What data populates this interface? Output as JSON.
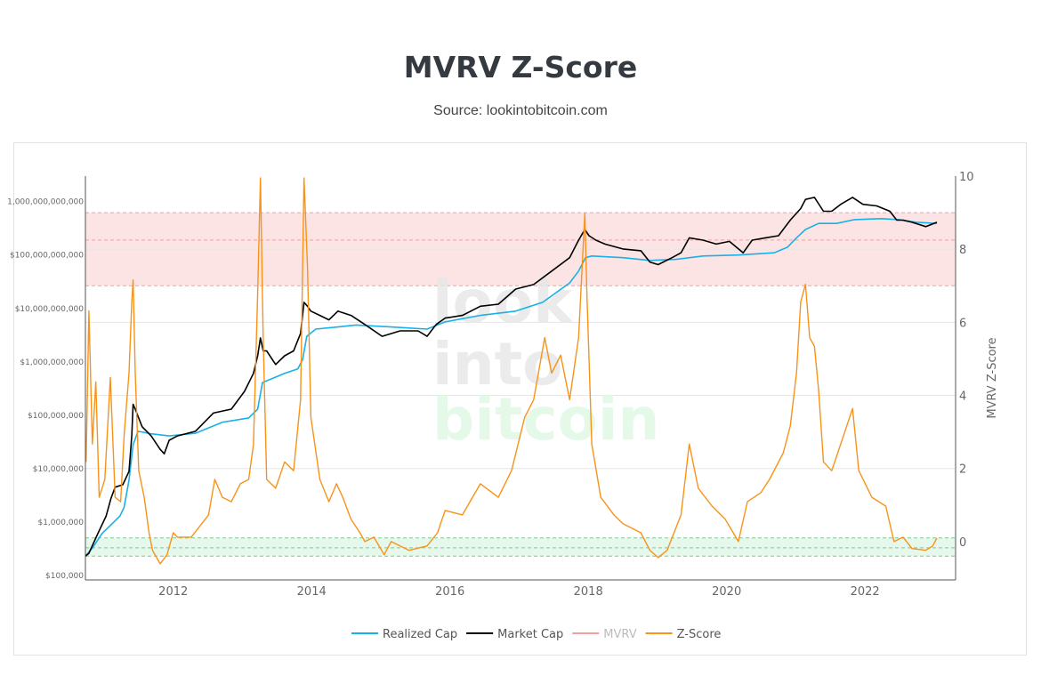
{
  "header": {
    "title": "MVRV Z-Score",
    "subtitle": "Source: lookintobitcoin.com"
  },
  "watermark": [
    "look",
    "into",
    "bitcoin"
  ],
  "chart_data": {
    "type": "line",
    "title": "MVRV Z-Score",
    "xlabel": "",
    "ylabel_left": "",
    "ylabel_right": "MVRV Z-Score",
    "x_range": [
      2010.73,
      2023.31
    ],
    "x_ticks": [
      "2012",
      "2014",
      "2016",
      "2018",
      "2020",
      "2022"
    ],
    "left_axis": {
      "scale": "log",
      "range": [
        100000,
        3000000000000
      ],
      "ticks": [
        "$100,000",
        "$1,000,000",
        "$10,000,000",
        "$100,000,000",
        "$1,000,000,000",
        "$10,000,000,000",
        "$100,000,000,000",
        "1,000,000,000,000"
      ]
    },
    "right_axis": {
      "scale": "linear",
      "range": [
        -1.05,
        10
      ],
      "ticks": [
        "0",
        "2",
        "4",
        "6",
        "8",
        "10"
      ]
    },
    "grid": true,
    "legend_placement": "bottom",
    "bands": [
      {
        "name": "overvalued",
        "axis": "right",
        "range": [
          7.0,
          9.0
        ],
        "inner": 8.25,
        "color": "#fde4e4",
        "line": "#f0a0a0"
      },
      {
        "name": "undervalued",
        "axis": "right",
        "range": [
          -0.4,
          0.1
        ],
        "inner": -0.17,
        "color": "#e6f7ec",
        "line": "#7ccb8e"
      }
    ],
    "series": [
      {
        "name": "Realized Cap",
        "axis": "left",
        "color": "#1ab0e8",
        "points": [
          [
            2010.73,
            230000.0
          ],
          [
            2010.84,
            340000.0
          ],
          [
            2010.97,
            610000.0
          ],
          [
            2011.1,
            890000.0
          ],
          [
            2011.23,
            1300000.0
          ],
          [
            2011.29,
            1900000.0
          ],
          [
            2011.36,
            6100000.0
          ],
          [
            2011.42,
            28000000.0
          ],
          [
            2011.49,
            50000000.0
          ],
          [
            2011.68,
            45000000.0
          ],
          [
            2011.94,
            41000000.0
          ],
          [
            2012.32,
            46000000.0
          ],
          [
            2012.71,
            74000000.0
          ],
          [
            2013.09,
            89000000.0
          ],
          [
            2013.22,
            130000000.0
          ],
          [
            2013.29,
            410000000.0
          ],
          [
            2013.61,
            610000000.0
          ],
          [
            2013.8,
            740000000.0
          ],
          [
            2013.87,
            1100000000.0
          ],
          [
            2013.93,
            3000000000.0
          ],
          [
            2014.06,
            4100000000.0
          ],
          [
            2014.38,
            4500000000.0
          ],
          [
            2014.64,
            4900000000.0
          ],
          [
            2015.15,
            4500000000.0
          ],
          [
            2015.67,
            4100000000.0
          ],
          [
            2015.93,
            5600000000.0
          ],
          [
            2016.44,
            7400000000.0
          ],
          [
            2016.95,
            8900000000.0
          ],
          [
            2017.34,
            13000000000.0
          ],
          [
            2017.73,
            30000000000.0
          ],
          [
            2017.86,
            50000000000.0
          ],
          [
            2017.96,
            89000000000.0
          ],
          [
            2018.05,
            96000000000.0
          ],
          [
            2018.5,
            89000000000.0
          ],
          [
            2018.89,
            79000000000.0
          ],
          [
            2019.27,
            83000000000.0
          ],
          [
            2019.66,
            96000000000.0
          ],
          [
            2020.17,
            100000000000.0
          ],
          [
            2020.69,
            110000000000.0
          ],
          [
            2020.88,
            140000000000.0
          ],
          [
            2021.01,
            210000000000.0
          ],
          [
            2021.14,
            300000000000.0
          ],
          [
            2021.33,
            390000000000.0
          ],
          [
            2021.59,
            390000000000.0
          ],
          [
            2021.85,
            460000000000.0
          ],
          [
            2022.23,
            480000000000.0
          ],
          [
            2022.49,
            460000000000.0
          ],
          [
            2022.75,
            410000000000.0
          ],
          [
            2023.04,
            390000000000.0
          ]
        ]
      },
      {
        "name": "Market Cap",
        "axis": "left",
        "color": "#000000",
        "points": [
          [
            2010.73,
            230000.0
          ],
          [
            2010.78,
            260000.0
          ],
          [
            2010.91,
            610000.0
          ],
          [
            2011.03,
            1300000.0
          ],
          [
            2011.1,
            2800000.0
          ],
          [
            2011.16,
            4500000.0
          ],
          [
            2011.27,
            5000000.0
          ],
          [
            2011.36,
            8900000.0
          ],
          [
            2011.4,
            41000000.0
          ],
          [
            2011.42,
            160000000.0
          ],
          [
            2011.45,
            130000000.0
          ],
          [
            2011.55,
            61000000.0
          ],
          [
            2011.68,
            41000000.0
          ],
          [
            2011.81,
            23000000.0
          ],
          [
            2011.87,
            19000000.0
          ],
          [
            2011.94,
            34000000.0
          ],
          [
            2012.06,
            41000000.0
          ],
          [
            2012.32,
            50000000.0
          ],
          [
            2012.58,
            110000000.0
          ],
          [
            2012.84,
            130000000.0
          ],
          [
            2013.03,
            280000000.0
          ],
          [
            2013.16,
            610000000.0
          ],
          [
            2013.22,
            1300000000.0
          ],
          [
            2013.26,
            2800000000.0
          ],
          [
            2013.3,
            1600000000.0
          ],
          [
            2013.35,
            1600000000.0
          ],
          [
            2013.48,
            890000000.0
          ],
          [
            2013.61,
            1300000000.0
          ],
          [
            2013.74,
            1600000000.0
          ],
          [
            2013.84,
            3400000000.0
          ],
          [
            2013.89,
            13000000000.0
          ],
          [
            2013.94,
            11000000000.0
          ],
          [
            2013.99,
            8900000000.0
          ],
          [
            2014.12,
            7400000000.0
          ],
          [
            2014.25,
            6100000000.0
          ],
          [
            2014.38,
            8900000000.0
          ],
          [
            2014.57,
            7400000000.0
          ],
          [
            2014.77,
            5000000000.0
          ],
          [
            2015.02,
            3000000000.0
          ],
          [
            2015.28,
            3800000000.0
          ],
          [
            2015.54,
            3800000000.0
          ],
          [
            2015.67,
            3000000000.0
          ],
          [
            2015.8,
            5000000000.0
          ],
          [
            2015.93,
            6600000000.0
          ],
          [
            2016.18,
            7400000000.0
          ],
          [
            2016.44,
            11000000000.0
          ],
          [
            2016.7,
            12000000000.0
          ],
          [
            2016.95,
            23000000000.0
          ],
          [
            2017.21,
            28000000000.0
          ],
          [
            2017.47,
            50000000000.0
          ],
          [
            2017.73,
            89000000000.0
          ],
          [
            2017.86,
            190000000000.0
          ],
          [
            2017.95,
            300000000000.0
          ],
          [
            2018.01,
            230000000000.0
          ],
          [
            2018.11,
            190000000000.0
          ],
          [
            2018.24,
            160000000000.0
          ],
          [
            2018.5,
            130000000000.0
          ],
          [
            2018.76,
            120000000000.0
          ],
          [
            2018.89,
            74000000000.0
          ],
          [
            2019.01,
            66000000000.0
          ],
          [
            2019.21,
            89000000000.0
          ],
          [
            2019.34,
            110000000000.0
          ],
          [
            2019.46,
            210000000000.0
          ],
          [
            2019.66,
            190000000000.0
          ],
          [
            2019.85,
            160000000000.0
          ],
          [
            2020.04,
            180000000000.0
          ],
          [
            2020.24,
            110000000000.0
          ],
          [
            2020.37,
            190000000000.0
          ],
          [
            2020.56,
            210000000000.0
          ],
          [
            2020.75,
            230000000000.0
          ],
          [
            2020.92,
            450000000000.0
          ],
          [
            2021.07,
            740000000000.0
          ],
          [
            2021.14,
            1100000000000.0
          ],
          [
            2021.27,
            1200000000000.0
          ],
          [
            2021.4,
            660000000000.0
          ],
          [
            2021.52,
            660000000000.0
          ],
          [
            2021.65,
            890000000000.0
          ],
          [
            2021.82,
            1200000000000.0
          ],
          [
            2021.97,
            890000000000.0
          ],
          [
            2022.17,
            830000000000.0
          ],
          [
            2022.36,
            660000000000.0
          ],
          [
            2022.46,
            450000000000.0
          ],
          [
            2022.55,
            450000000000.0
          ],
          [
            2022.68,
            410000000000.0
          ],
          [
            2022.88,
            340000000000.0
          ],
          [
            2023.04,
            410000000000.0
          ]
        ]
      },
      {
        "name": "MVRV",
        "axis": "left",
        "color": "#f4a0a0",
        "hidden": true,
        "points": []
      },
      {
        "name": "Z-Score",
        "axis": "right",
        "color": "#f7931a",
        "points": [
          [
            2010.74,
            2.18
          ],
          [
            2010.78,
            6.31
          ],
          [
            2010.83,
            2.67
          ],
          [
            2010.88,
            4.37
          ],
          [
            2010.93,
            1.21
          ],
          [
            2011.01,
            1.7
          ],
          [
            2011.09,
            4.49
          ],
          [
            2011.16,
            1.21
          ],
          [
            2011.24,
            1.09
          ],
          [
            2011.29,
            2.91
          ],
          [
            2011.36,
            4.61
          ],
          [
            2011.4,
            6.55
          ],
          [
            2011.42,
            7.16
          ],
          [
            2011.45,
            4.61
          ],
          [
            2011.5,
            1.94
          ],
          [
            2011.58,
            1.21
          ],
          [
            2011.65,
            0.24
          ],
          [
            2011.7,
            -0.24
          ],
          [
            2011.81,
            -0.61
          ],
          [
            2011.91,
            -0.36
          ],
          [
            2012.0,
            0.24
          ],
          [
            2012.06,
            0.12
          ],
          [
            2012.26,
            0.12
          ],
          [
            2012.51,
            0.73
          ],
          [
            2012.6,
            1.7
          ],
          [
            2012.71,
            1.21
          ],
          [
            2012.84,
            1.09
          ],
          [
            2012.97,
            1.58
          ],
          [
            2013.09,
            1.7
          ],
          [
            2013.16,
            2.67
          ],
          [
            2013.22,
            6.8
          ],
          [
            2013.26,
            9.95
          ],
          [
            2013.3,
            5.58
          ],
          [
            2013.35,
            1.7
          ],
          [
            2013.48,
            1.46
          ],
          [
            2013.61,
            2.18
          ],
          [
            2013.74,
            1.94
          ],
          [
            2013.84,
            3.88
          ],
          [
            2013.89,
            9.95
          ],
          [
            2013.94,
            7.52
          ],
          [
            2013.99,
            3.4
          ],
          [
            2014.12,
            1.7
          ],
          [
            2014.25,
            1.09
          ],
          [
            2014.36,
            1.58
          ],
          [
            2014.45,
            1.21
          ],
          [
            2014.57,
            0.61
          ],
          [
            2014.7,
            0.24
          ],
          [
            2014.77,
            0.0
          ],
          [
            2014.9,
            0.12
          ],
          [
            2015.05,
            -0.36
          ],
          [
            2015.15,
            0.0
          ],
          [
            2015.41,
            -0.24
          ],
          [
            2015.67,
            -0.12
          ],
          [
            2015.82,
            0.24
          ],
          [
            2015.93,
            0.85
          ],
          [
            2016.18,
            0.73
          ],
          [
            2016.44,
            1.58
          ],
          [
            2016.7,
            1.21
          ],
          [
            2016.89,
            1.94
          ],
          [
            2017.08,
            3.4
          ],
          [
            2017.21,
            3.88
          ],
          [
            2017.37,
            5.58
          ],
          [
            2017.47,
            4.61
          ],
          [
            2017.6,
            5.1
          ],
          [
            2017.73,
            3.88
          ],
          [
            2017.86,
            5.58
          ],
          [
            2017.95,
            8.98
          ],
          [
            2017.98,
            6.8
          ],
          [
            2018.05,
            2.67
          ],
          [
            2018.18,
            1.21
          ],
          [
            2018.37,
            0.73
          ],
          [
            2018.5,
            0.49
          ],
          [
            2018.76,
            0.24
          ],
          [
            2018.89,
            -0.24
          ],
          [
            2019.01,
            -0.44
          ],
          [
            2019.14,
            -0.24
          ],
          [
            2019.34,
            0.73
          ],
          [
            2019.46,
            2.67
          ],
          [
            2019.59,
            1.46
          ],
          [
            2019.79,
            0.97
          ],
          [
            2019.98,
            0.61
          ],
          [
            2020.17,
            0.0
          ],
          [
            2020.3,
            1.09
          ],
          [
            2020.49,
            1.33
          ],
          [
            2020.62,
            1.7
          ],
          [
            2020.82,
            2.43
          ],
          [
            2020.92,
            3.16
          ],
          [
            2021.01,
            4.61
          ],
          [
            2021.07,
            6.55
          ],
          [
            2021.14,
            7.04
          ],
          [
            2021.2,
            5.58
          ],
          [
            2021.27,
            5.34
          ],
          [
            2021.33,
            4.13
          ],
          [
            2021.4,
            2.18
          ],
          [
            2021.52,
            1.94
          ],
          [
            2021.65,
            2.67
          ],
          [
            2021.82,
            3.64
          ],
          [
            2021.91,
            1.94
          ],
          [
            2022.1,
            1.21
          ],
          [
            2022.3,
            0.97
          ],
          [
            2022.42,
            0.0
          ],
          [
            2022.55,
            0.12
          ],
          [
            2022.68,
            -0.19
          ],
          [
            2022.88,
            -0.24
          ],
          [
            2022.98,
            -0.12
          ],
          [
            2023.04,
            0.1
          ]
        ]
      }
    ]
  }
}
